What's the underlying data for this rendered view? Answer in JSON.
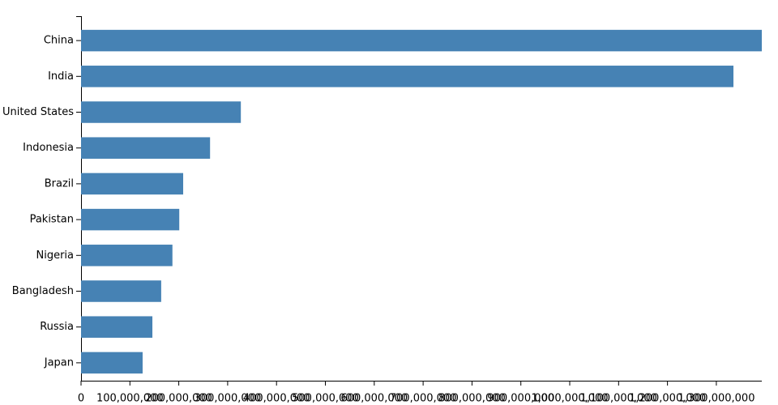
{
  "chart_data": {
    "type": "bar",
    "orientation": "horizontal",
    "color": "#4682b4",
    "categories": [
      "China",
      "India",
      "United States",
      "Indonesia",
      "Brazil",
      "Pakistan",
      "Nigeria",
      "Bangladesh",
      "Russia",
      "Japan"
    ],
    "values": [
      1393000000,
      1335000000,
      327000000,
      264000000,
      209000000,
      201000000,
      187000000,
      164000000,
      146000000,
      126000000
    ],
    "xlim": [
      0,
      1393000000
    ],
    "xticks": [
      0,
      {
        "value": 100000000,
        "label": "100,000,000"
      },
      {
        "value": 200000000,
        "label": "200,000,000"
      },
      {
        "value": 300000000,
        "label": "300,000,000"
      },
      {
        "value": 400000000,
        "label": "400,000,000"
      },
      {
        "value": 500000000,
        "label": "500,000,000"
      },
      {
        "value": 600000000,
        "label": "600,000,000"
      },
      {
        "value": 700000000,
        "label": "700,000,000"
      },
      {
        "value": 800000000,
        "label": "800,000,000"
      },
      {
        "value": 900000000,
        "label": "900,000,000"
      },
      {
        "value": 1000000000,
        "label": "1,000,000,000"
      },
      {
        "value": 1100000000,
        "label": "1,100,000,000"
      },
      {
        "value": 1200000000,
        "label": "1,200,000,000"
      },
      {
        "value": 1300000000,
        "label": "1,300,000,000"
      }
    ],
    "grid": false
  }
}
